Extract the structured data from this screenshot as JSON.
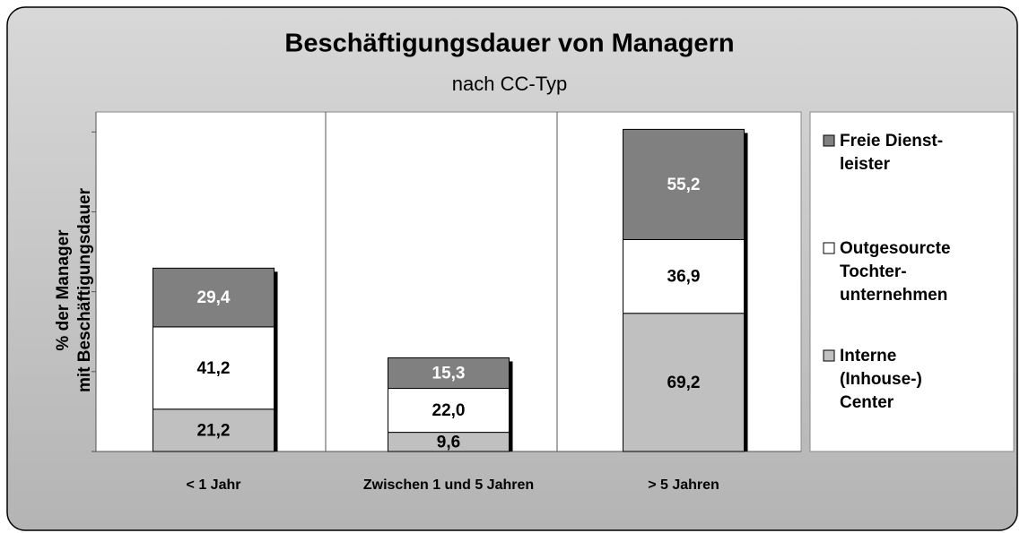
{
  "chart_data": {
    "type": "stacked_bar",
    "title": "Beschäftigungsdauer von Managern",
    "subtitle": "nach CC-Typ",
    "y_label": "% der Manager\nmit Beschäftigungsdauer",
    "categories": [
      "< 1 Jahr",
      "Zwischen 1 und 5 Jahren",
      "> 5 Jahren"
    ],
    "series": [
      {
        "name": "Interne\n(Inhouse-)\nCenter",
        "color": "#c0c0c0",
        "label_color": "#000000",
        "values": [
          21.2,
          9.6,
          69.2
        ],
        "value_labels": [
          "21,2",
          "9,6",
          "69,2"
        ]
      },
      {
        "name": "Outgesourcte\nTochter-\nunternehmen",
        "color": "#ffffff",
        "label_color": "#000000",
        "values": [
          41.2,
          22.0,
          36.9
        ],
        "value_labels": [
          "41,2",
          "22,0",
          "36,9"
        ]
      },
      {
        "name": "Freie Dienst-\nleister",
        "color": "#808080",
        "label_color": "#ffffff",
        "values": [
          29.4,
          15.3,
          55.2
        ],
        "value_labels": [
          "29,4",
          "15,3",
          "55,2"
        ]
      }
    ],
    "ylim": [
      0,
      170
    ],
    "yticks": [
      0,
      40,
      80,
      120,
      160
    ],
    "legend": "right"
  }
}
